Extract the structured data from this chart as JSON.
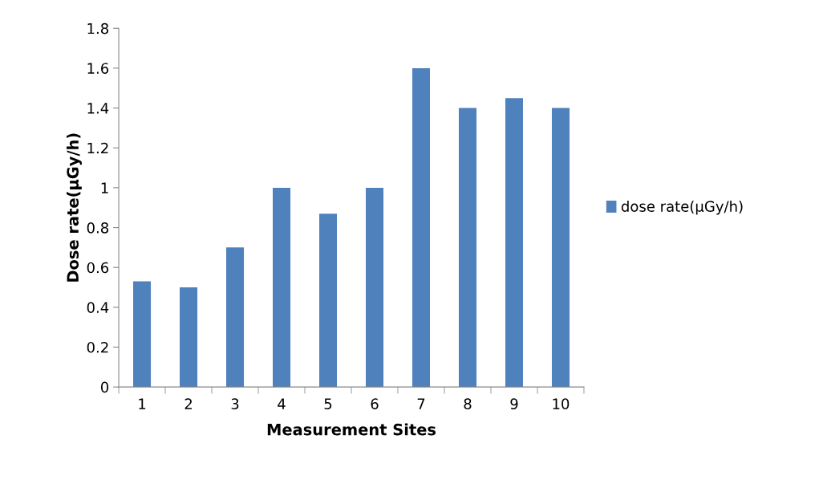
{
  "chart_data": {
    "type": "bar",
    "xlabel": "Measurement Sites",
    "ylabel": "Dose rate(µGy/h)",
    "categories": [
      "1",
      "2",
      "3",
      "4",
      "5",
      "6",
      "7",
      "8",
      "9",
      "10"
    ],
    "series": [
      {
        "name": "dose rate(µGy/h)",
        "color": "#4f81bd",
        "values": [
          0.53,
          0.5,
          0.7,
          1.0,
          0.87,
          1.0,
          1.6,
          1.4,
          1.45,
          1.4
        ]
      }
    ],
    "ylim": [
      0,
      1.8
    ],
    "yticks": [
      0,
      0.2,
      0.4,
      0.6,
      0.8,
      1,
      1.2,
      1.4,
      1.6,
      1.8
    ],
    "grid": false,
    "legend": "right"
  }
}
